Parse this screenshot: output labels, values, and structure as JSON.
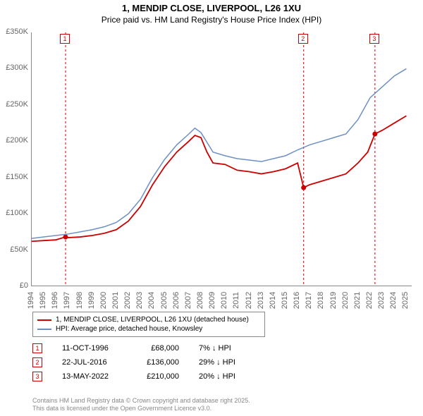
{
  "title": "1, MENDIP CLOSE, LIVERPOOL, L26 1XU",
  "subtitle": "Price paid vs. HM Land Registry's House Price Index (HPI)",
  "chart": {
    "type": "line",
    "background_color": "#ffffff",
    "xlim": [
      1994,
      2025.5
    ],
    "ylim": [
      0,
      350000
    ],
    "ytick_step": 50000,
    "yticks": [
      "£0",
      "£50K",
      "£100K",
      "£150K",
      "£200K",
      "£250K",
      "£300K",
      "£350K"
    ],
    "xticks": [
      "1994",
      "1995",
      "1996",
      "1997",
      "1998",
      "1999",
      "2000",
      "2001",
      "2002",
      "2003",
      "2004",
      "2005",
      "2006",
      "2007",
      "2008",
      "2009",
      "2010",
      "2011",
      "2012",
      "2013",
      "2014",
      "2015",
      "2016",
      "2017",
      "2018",
      "2019",
      "2020",
      "2021",
      "2022",
      "2023",
      "2024",
      "2025"
    ],
    "axis_fontsize": 11,
    "axis_color": "#666666",
    "series": [
      {
        "name": "property",
        "label": "1, MENDIP CLOSE, LIVERPOOL, L26 1XU (detached house)",
        "color": "#cc0000",
        "line_width": 1.8,
        "data": [
          [
            1994,
            62000
          ],
          [
            1995,
            63000
          ],
          [
            1996,
            64000
          ],
          [
            1996.8,
            68000
          ],
          [
            1997,
            67000
          ],
          [
            1998,
            68000
          ],
          [
            1999,
            70000
          ],
          [
            2000,
            73000
          ],
          [
            2001,
            78000
          ],
          [
            2002,
            90000
          ],
          [
            2003,
            110000
          ],
          [
            2004,
            140000
          ],
          [
            2005,
            165000
          ],
          [
            2006,
            185000
          ],
          [
            2007,
            200000
          ],
          [
            2007.5,
            208000
          ],
          [
            2008,
            205000
          ],
          [
            2008.5,
            185000
          ],
          [
            2009,
            170000
          ],
          [
            2010,
            168000
          ],
          [
            2011,
            160000
          ],
          [
            2012,
            158000
          ],
          [
            2013,
            155000
          ],
          [
            2014,
            158000
          ],
          [
            2015,
            162000
          ],
          [
            2016,
            170000
          ],
          [
            2016.5,
            136000
          ],
          [
            2017,
            140000
          ],
          [
            2018,
            145000
          ],
          [
            2019,
            150000
          ],
          [
            2020,
            155000
          ],
          [
            2021,
            170000
          ],
          [
            2021.8,
            185000
          ],
          [
            2022.4,
            210000
          ],
          [
            2023,
            215000
          ],
          [
            2024,
            225000
          ],
          [
            2025,
            235000
          ]
        ],
        "dots": [
          [
            1996.8,
            68000
          ],
          [
            2016.5,
            136000
          ],
          [
            2022.4,
            210000
          ]
        ]
      },
      {
        "name": "hpi",
        "label": "HPI: Average price, detached house, Knowsley",
        "color": "#6e8fc4",
        "line_width": 1.5,
        "data": [
          [
            1994,
            66000
          ],
          [
            1995,
            68000
          ],
          [
            1996,
            70000
          ],
          [
            1997,
            72000
          ],
          [
            1998,
            75000
          ],
          [
            1999,
            78000
          ],
          [
            2000,
            82000
          ],
          [
            2001,
            88000
          ],
          [
            2002,
            100000
          ],
          [
            2003,
            120000
          ],
          [
            2004,
            150000
          ],
          [
            2005,
            175000
          ],
          [
            2006,
            195000
          ],
          [
            2007,
            210000
          ],
          [
            2007.5,
            218000
          ],
          [
            2008,
            212000
          ],
          [
            2009,
            185000
          ],
          [
            2010,
            180000
          ],
          [
            2011,
            176000
          ],
          [
            2012,
            174000
          ],
          [
            2013,
            172000
          ],
          [
            2014,
            176000
          ],
          [
            2015,
            180000
          ],
          [
            2016,
            188000
          ],
          [
            2017,
            195000
          ],
          [
            2018,
            200000
          ],
          [
            2019,
            205000
          ],
          [
            2020,
            210000
          ],
          [
            2021,
            230000
          ],
          [
            2022,
            260000
          ],
          [
            2023,
            275000
          ],
          [
            2024,
            290000
          ],
          [
            2025,
            300000
          ]
        ]
      }
    ],
    "transaction_lines": [
      {
        "x": 1996.8,
        "color": "#cc0000",
        "label": "1"
      },
      {
        "x": 2016.5,
        "color": "#cc0000",
        "label": "2"
      },
      {
        "x": 2022.4,
        "color": "#cc0000",
        "label": "3"
      }
    ]
  },
  "legend": {
    "border_color": "#888888",
    "fontsize": 10
  },
  "transactions": [
    {
      "num": "1",
      "date": "11-OCT-1996",
      "price": "£68,000",
      "diff": "7% ↓ HPI",
      "color": "#cc0000"
    },
    {
      "num": "2",
      "date": "22-JUL-2016",
      "price": "£136,000",
      "diff": "29% ↓ HPI",
      "color": "#cc0000"
    },
    {
      "num": "3",
      "date": "13-MAY-2022",
      "price": "£210,000",
      "diff": "20% ↓ HPI",
      "color": "#cc0000"
    }
  ],
  "footer": {
    "line1": "Contains HM Land Registry data © Crown copyright and database right 2025.",
    "line2": "This data is licensed under the Open Government Licence v3.0."
  }
}
